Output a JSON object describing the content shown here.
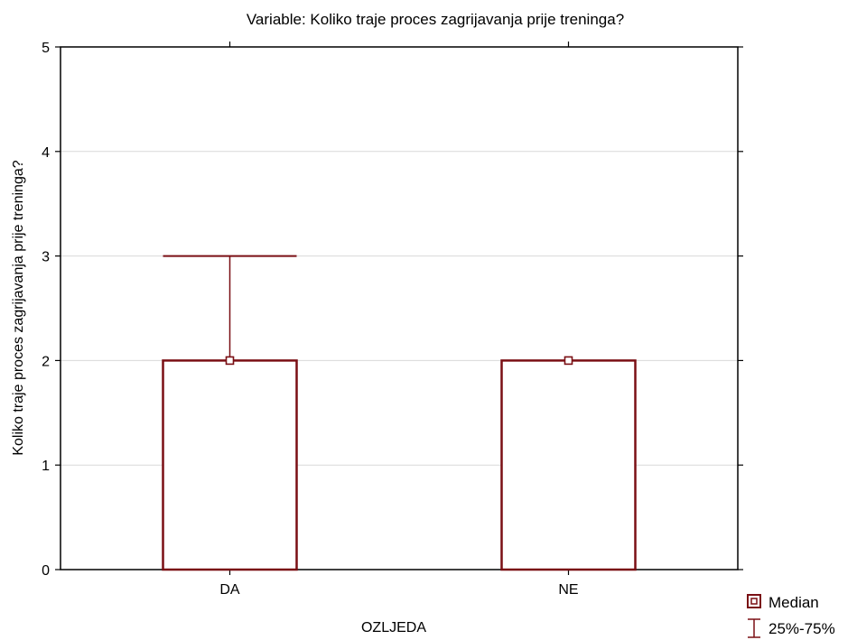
{
  "chart_data": {
    "type": "box",
    "title": "Variable: Koliko traje proces zagrijavanja prije treninga?",
    "xlabel": "OZLJEDA",
    "ylabel": "Koliko traje proces zagrijavanja prije treninga?",
    "categories": [
      "DA",
      "NE"
    ],
    "ylim": [
      0,
      5
    ],
    "yticks": [
      "0",
      "1",
      "2",
      "3",
      "4",
      "5"
    ],
    "grid": true,
    "legend_position": "bottom-right",
    "boxes": [
      {
        "category": "DA",
        "median": 2,
        "q1": 0,
        "q3": 2,
        "whisker_high": 3
      },
      {
        "category": "NE",
        "median": 2,
        "q1": 0,
        "q3": 2,
        "whisker_high": 2
      }
    ],
    "legend": [
      "Median",
      "25%-75%"
    ],
    "colors": {
      "box": "#7a0f14",
      "grid": "#d9d9d9",
      "axis": "#000000"
    }
  }
}
